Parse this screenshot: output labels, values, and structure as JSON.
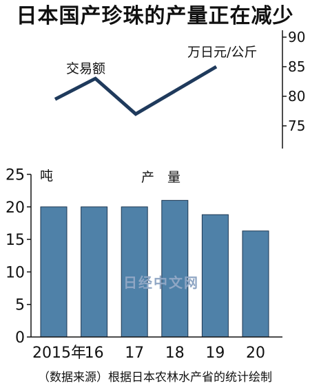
{
  "title": "日本国产珍珠的产量正在减少",
  "source": "（数据来源）根据日本农林水产省的统计绘制",
  "watermark": "日经中文网",
  "colors": {
    "bar": "#4f81a8",
    "bar_edge": "#1b3550",
    "line": "#1f3a5c",
    "axis": "#111111"
  },
  "chart_data": [
    {
      "type": "line",
      "label": "交易额",
      "unit": "万日元/公斤",
      "x": [
        "2015",
        "2016",
        "2017",
        "2018",
        "2019"
      ],
      "values": [
        79.5,
        83,
        77,
        81,
        85
      ],
      "ylim": [
        70,
        90
      ],
      "yticks": [
        75,
        80,
        85,
        90
      ],
      "y_axis_side": "right",
      "grid": false
    },
    {
      "type": "bar",
      "label": "产　量",
      "unit": "吨",
      "categories": [
        "2015年",
        "16",
        "17",
        "18",
        "19",
        "20"
      ],
      "values": [
        20,
        20,
        20,
        21,
        18.8,
        16.3
      ],
      "ylim": [
        0,
        25
      ],
      "yticks": [
        0,
        5,
        10,
        15,
        20,
        25
      ],
      "y_axis_side": "left",
      "grid": false
    }
  ]
}
